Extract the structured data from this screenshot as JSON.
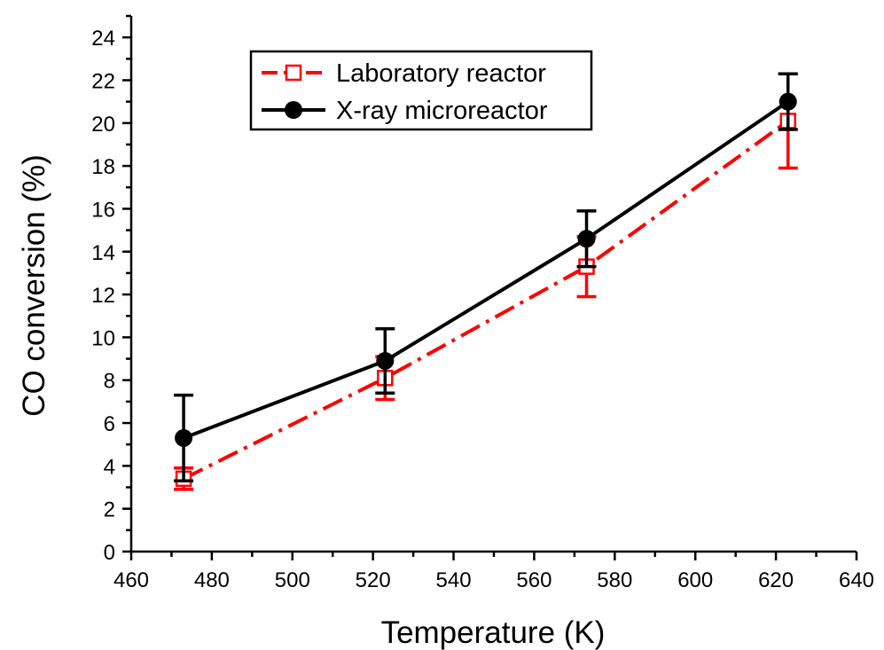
{
  "chart_data": {
    "type": "line",
    "title": "",
    "xlabel": "Temperature (K)",
    "ylabel": "CO conversion (%)",
    "xlim": [
      460,
      640
    ],
    "ylim": [
      0,
      25
    ],
    "x_ticks": [
      460,
      480,
      500,
      520,
      540,
      560,
      580,
      600,
      620,
      640
    ],
    "y_ticks": [
      0,
      2,
      4,
      6,
      8,
      10,
      12,
      14,
      16,
      18,
      20,
      22,
      24
    ],
    "grid": false,
    "legend_position": "top-left",
    "series": [
      {
        "name": "Laboratory reactor",
        "color": "#ff0000",
        "line_style": "dash-dot",
        "marker": "open-square",
        "x": [
          473,
          523,
          573,
          623
        ],
        "y": [
          3.4,
          8.1,
          13.3,
          20.1
        ],
        "error": [
          0.5,
          1.0,
          1.4,
          2.2
        ]
      },
      {
        "name": "X-ray microreactor",
        "color": "#000000",
        "line_style": "solid",
        "marker": "filled-circle",
        "x": [
          473,
          523,
          573,
          623
        ],
        "y": [
          5.3,
          8.9,
          14.6,
          21.0
        ],
        "error": [
          2.0,
          1.5,
          1.3,
          1.3
        ]
      }
    ]
  }
}
